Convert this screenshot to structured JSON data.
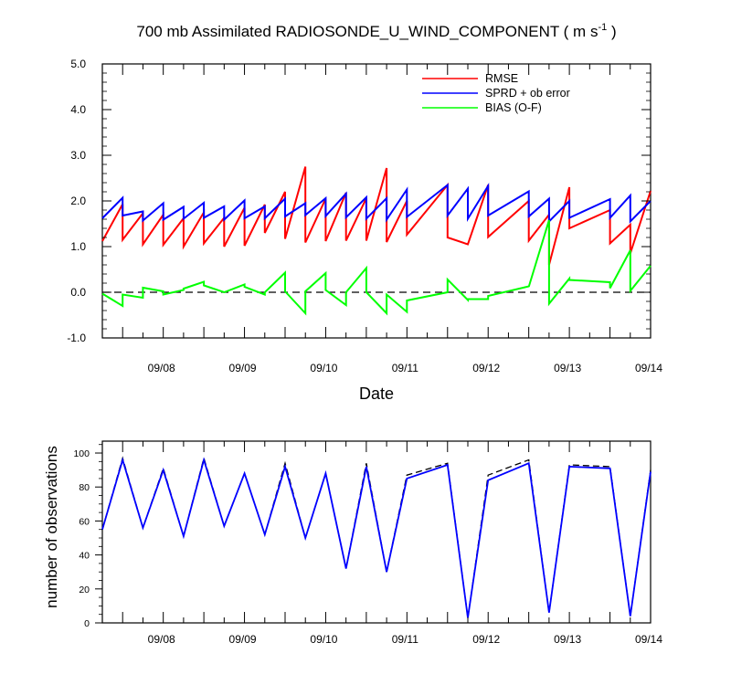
{
  "chart_data": [
    {
      "type": "line",
      "title": "700 mb Assimilated RADIOSONDE_U_WIND_COMPONENT ( m s",
      "title_unit_superscript": "-1",
      "title_close": " )",
      "xlabel": "Date",
      "ylabel": "",
      "ylim": [
        -1.0,
        5.0
      ],
      "xlim": [
        "09/07 06Z",
        "09/14 00Z"
      ],
      "x_ticks": [
        "09/08",
        "09/09",
        "09/10",
        "09/11",
        "09/12",
        "09/13",
        "09/14"
      ],
      "y_ticks": [
        "-1.0",
        "0.0",
        "1.0",
        "2.0",
        "3.0",
        "4.0",
        "5.0"
      ],
      "zero_line": "dashed",
      "grid": false,
      "legend_position": "top-right",
      "colors": {
        "rmse": "#ff0000",
        "sprd": "#0000ff",
        "bias": "#00ff00"
      },
      "x": [
        "09/07 06Z",
        "09/07 06Z",
        "09/07 12Z",
        "09/07 12Z",
        "09/07 18Z",
        "09/07 18Z",
        "09/08 00Z",
        "09/08 00Z",
        "09/08 06Z",
        "09/08 06Z",
        "09/08 12Z",
        "09/08 12Z",
        "09/08 18Z",
        "09/08 18Z",
        "09/09 00Z",
        "09/09 00Z",
        "09/09 06Z",
        "09/09 06Z",
        "09/09 12Z",
        "09/09 12Z",
        "09/09 18Z",
        "09/09 18Z",
        "09/10 00Z",
        "09/10 00Z",
        "09/10 06Z",
        "09/10 06Z",
        "09/10 12Z",
        "09/10 12Z",
        "09/10 18Z",
        "09/10 18Z",
        "09/11 00Z",
        "09/11 00Z",
        "09/11 12Z",
        "09/11 12Z",
        "09/11 18Z",
        "09/11 18Z",
        "09/12 00Z",
        "09/12 00Z",
        "09/12 12Z",
        "09/12 12Z",
        "09/12 18Z",
        "09/12 18Z",
        "09/13 00Z",
        "09/13 00Z",
        "09/13 12Z",
        "09/13 12Z",
        "09/13 18Z",
        "09/13 18Z",
        "09/14 00Z"
      ],
      "series": [
        {
          "name": "RMSE",
          "values": [
            1.12,
            1.12,
            1.93,
            1.15,
            1.73,
            1.05,
            1.7,
            1.04,
            1.62,
            1.0,
            1.75,
            1.07,
            1.63,
            1.0,
            1.85,
            1.02,
            1.92,
            1.3,
            2.2,
            1.17,
            2.75,
            1.09,
            2.05,
            1.12,
            2.18,
            1.13,
            2.06,
            1.13,
            2.72,
            1.1,
            2.0,
            1.26,
            2.35,
            1.2,
            1.05,
            1.05,
            2.35,
            1.21,
            2.0,
            1.13,
            1.7,
            0.6,
            2.3,
            1.4,
            1.8,
            1.07,
            1.48,
            0.85,
            2.22
          ]
        },
        {
          "name": "SPRD + ob error",
          "values": [
            1.62,
            1.62,
            2.07,
            1.68,
            1.77,
            1.57,
            1.95,
            1.59,
            1.87,
            1.61,
            1.96,
            1.63,
            1.88,
            1.59,
            2.01,
            1.62,
            1.88,
            1.62,
            2.05,
            1.66,
            1.95,
            1.69,
            2.06,
            1.67,
            2.16,
            1.64,
            2.08,
            1.61,
            2.06,
            1.59,
            2.25,
            1.65,
            2.35,
            1.68,
            2.27,
            1.61,
            2.33,
            1.68,
            2.21,
            1.66,
            2.05,
            1.55,
            2.0,
            1.63,
            2.04,
            1.63,
            2.12,
            1.55,
            2.0
          ]
        },
        {
          "name": "BIAS (O-F)",
          "values": [
            -0.03,
            -0.03,
            -0.3,
            -0.05,
            -0.12,
            0.1,
            0.02,
            -0.05,
            0.05,
            0.08,
            0.23,
            0.15,
            0.0,
            0.0,
            0.17,
            0.12,
            -0.05,
            0.0,
            0.43,
            0.02,
            -0.46,
            0.02,
            0.42,
            0.05,
            -0.28,
            0.0,
            0.53,
            0.0,
            -0.46,
            -0.05,
            -0.43,
            -0.18,
            0.0,
            0.28,
            -0.17,
            -0.15,
            -0.15,
            -0.08,
            0.13,
            0.12,
            1.58,
            -0.25,
            0.3,
            0.27,
            0.22,
            0.09,
            0.92,
            0.03,
            0.58
          ]
        }
      ]
    },
    {
      "type": "line",
      "title": "",
      "xlabel": "",
      "ylabel": "number of observations",
      "ylim": [
        0,
        107
      ],
      "xlim": [
        "09/07 06Z",
        "09/14 00Z"
      ],
      "x_ticks": [
        "09/08",
        "09/09",
        "09/10",
        "09/11",
        "09/12",
        "09/13",
        "09/14"
      ],
      "y_ticks": [
        "0",
        "20",
        "40",
        "60",
        "80",
        "100"
      ],
      "grid": false,
      "x": [
        "09/07 06Z",
        "09/07 12Z",
        "09/07 18Z",
        "09/08 00Z",
        "09/08 06Z",
        "09/08 12Z",
        "09/08 18Z",
        "09/09 00Z",
        "09/09 06Z",
        "09/09 12Z",
        "09/09 18Z",
        "09/10 00Z",
        "09/10 06Z",
        "09/10 12Z",
        "09/10 18Z",
        "09/11 00Z",
        "09/11 12Z",
        "09/11 18Z",
        "09/12 00Z",
        "09/12 12Z",
        "09/12 18Z",
        "09/13 00Z",
        "09/13 12Z",
        "09/13 18Z",
        "09/14 00Z"
      ],
      "series": [
        {
          "color": "#000000",
          "dash": "dashed",
          "values": [
            55,
            97,
            56,
            91,
            51,
            97,
            57,
            88,
            52,
            94,
            50,
            88,
            32,
            94,
            30,
            87,
            94,
            3,
            87,
            96,
            6,
            93,
            92,
            4,
            90
          ]
        },
        {
          "color": "#0000ff",
          "dash": "solid",
          "values": [
            55,
            96,
            56,
            90,
            51,
            96,
            57,
            88,
            52,
            92,
            50,
            88,
            32,
            92,
            30,
            85,
            93,
            3,
            84,
            94,
            6,
            92,
            91,
            4,
            89
          ]
        }
      ]
    }
  ]
}
